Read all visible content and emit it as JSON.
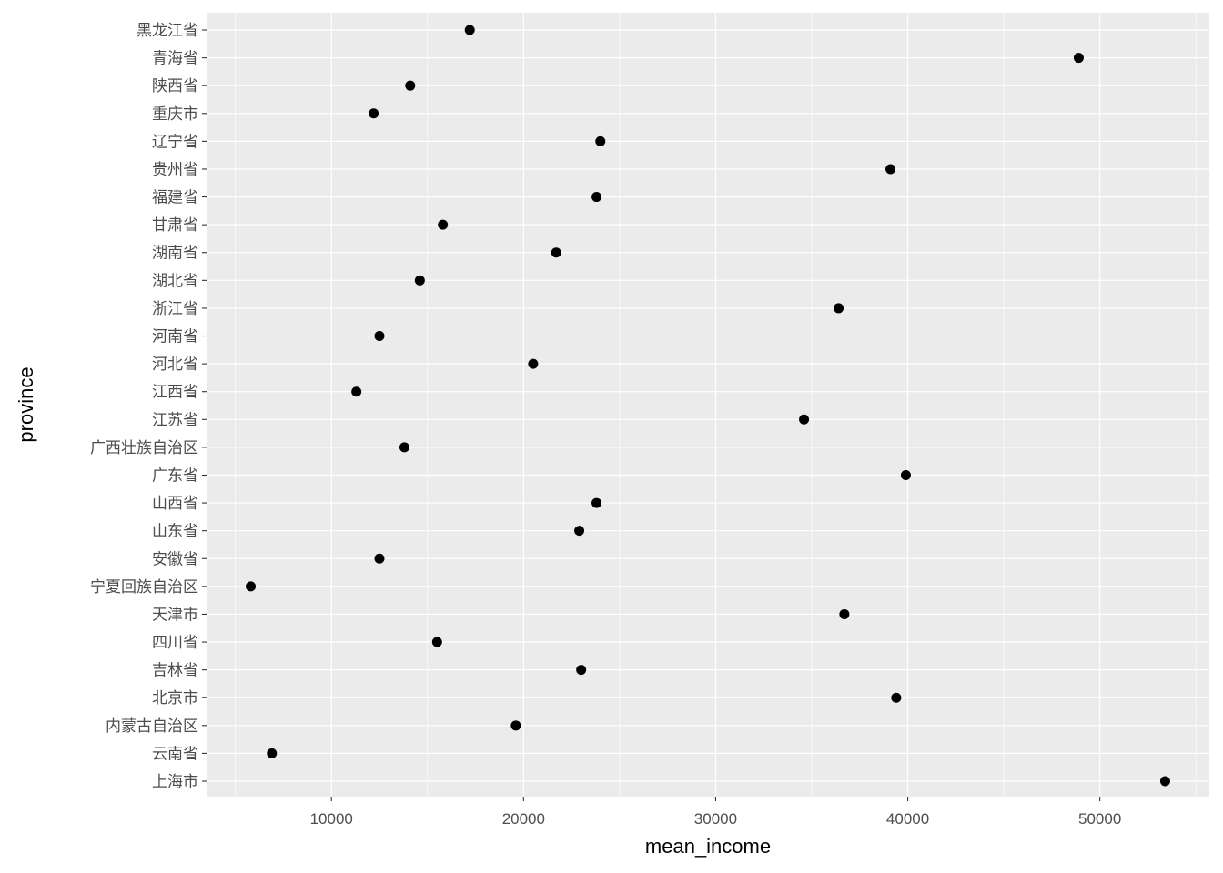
{
  "chart_data": {
    "type": "scatter",
    "title": "",
    "xlabel": "mean_income",
    "ylabel": "province",
    "xlim": [
      3500,
      55700
    ],
    "x_ticks": [
      10000,
      20000,
      30000,
      40000,
      50000
    ],
    "x_tick_labels": [
      "10000",
      "20000",
      "30000",
      "40000",
      "50000"
    ],
    "grid": true,
    "legend": "none",
    "colors": {
      "panel": "#EBEBEB",
      "grid": "#FFFFFF",
      "point": "#000000"
    },
    "categories": [
      "上海市",
      "云南省",
      "内蒙古自治区",
      "北京市",
      "吉林省",
      "四川省",
      "天津市",
      "宁夏回族自治区",
      "安徽省",
      "山东省",
      "山西省",
      "广东省",
      "广西壮族自治区",
      "江苏省",
      "江西省",
      "河北省",
      "河南省",
      "浙江省",
      "湖北省",
      "湖南省",
      "甘肃省",
      "福建省",
      "贵州省",
      "辽宁省",
      "重庆市",
      "陕西省",
      "青海省",
      "黑龙江省"
    ],
    "values": [
      53400,
      6900,
      19600,
      39400,
      23000,
      15500,
      36700,
      5800,
      12500,
      22900,
      23800,
      39900,
      13800,
      34600,
      11300,
      20500,
      12500,
      36400,
      14600,
      21700,
      15800,
      23800,
      39100,
      24000,
      12200,
      14100,
      48900,
      17200
    ]
  }
}
